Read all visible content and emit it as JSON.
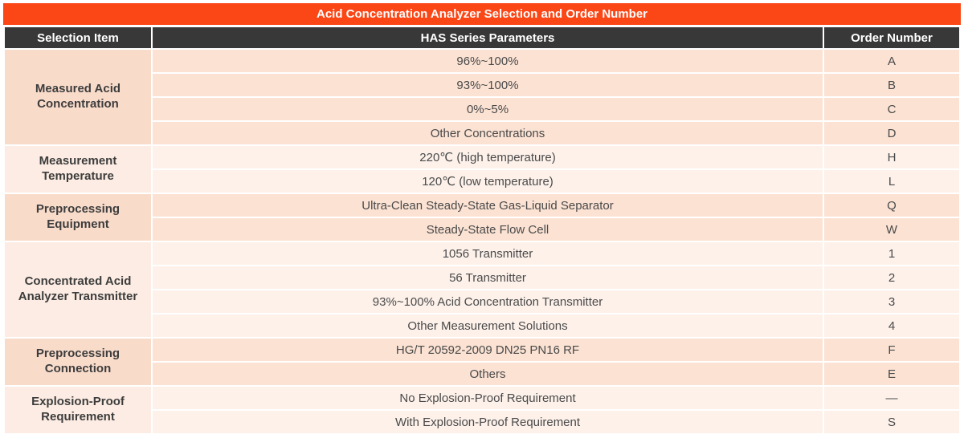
{
  "title": "Acid Concentration Analyzer Selection and Order Number",
  "colors": {
    "title_bg": "#fb4616",
    "header_bg": "#383838",
    "dark_label_bg": "#f9dbca",
    "dark_row_bg": "#fbe2d3",
    "light_label_bg": "#fcece3",
    "light_row_bg": "#fdf1ea"
  },
  "header": {
    "columns": [
      "Selection Item",
      "HAS Series Parameters",
      "Order Number"
    ]
  },
  "groups": [
    {
      "label": "Measured Acid Concentration",
      "shade": "dark",
      "rows": [
        {
          "param": "96%~100%",
          "order": "A"
        },
        {
          "param": "93%~100%",
          "order": "B"
        },
        {
          "param": "0%~5%",
          "order": "C"
        },
        {
          "param": "Other Concentrations",
          "order": "D"
        }
      ]
    },
    {
      "label": "Measurement Temperature",
      "shade": "light",
      "rows": [
        {
          "param": "220℃  (high temperature)",
          "order": "H"
        },
        {
          "param": "120℃  (low temperature)",
          "order": "L"
        }
      ]
    },
    {
      "label": "Preprocessing Equipment",
      "shade": "dark",
      "rows": [
        {
          "param": "Ultra-Clean Steady-State Gas-Liquid Separator",
          "order": "Q"
        },
        {
          "param": "Steady-State Flow Cell",
          "order": "W"
        }
      ]
    },
    {
      "label": "Concentrated Acid Analyzer Transmitter",
      "shade": "light",
      "rows": [
        {
          "param": "1056 Transmitter",
          "order": "1"
        },
        {
          "param": "56 Transmitter",
          "order": "2"
        },
        {
          "param": "93%~100% Acid Concentration Transmitter",
          "order": "3"
        },
        {
          "param": "Other Measurement Solutions",
          "order": "4"
        }
      ]
    },
    {
      "label": "Preprocessing Connection",
      "shade": "dark",
      "rows": [
        {
          "param": "HG/T 20592-2009 DN25 PN16 RF",
          "order": "F"
        },
        {
          "param": "Others",
          "order": "E"
        }
      ]
    },
    {
      "label": "Explosion-Proof Requirement",
      "shade": "light",
      "rows": [
        {
          "param": "No Explosion-Proof Requirement",
          "order": "—"
        },
        {
          "param": "With Explosion-Proof Requirement",
          "order": "S"
        }
      ]
    }
  ]
}
